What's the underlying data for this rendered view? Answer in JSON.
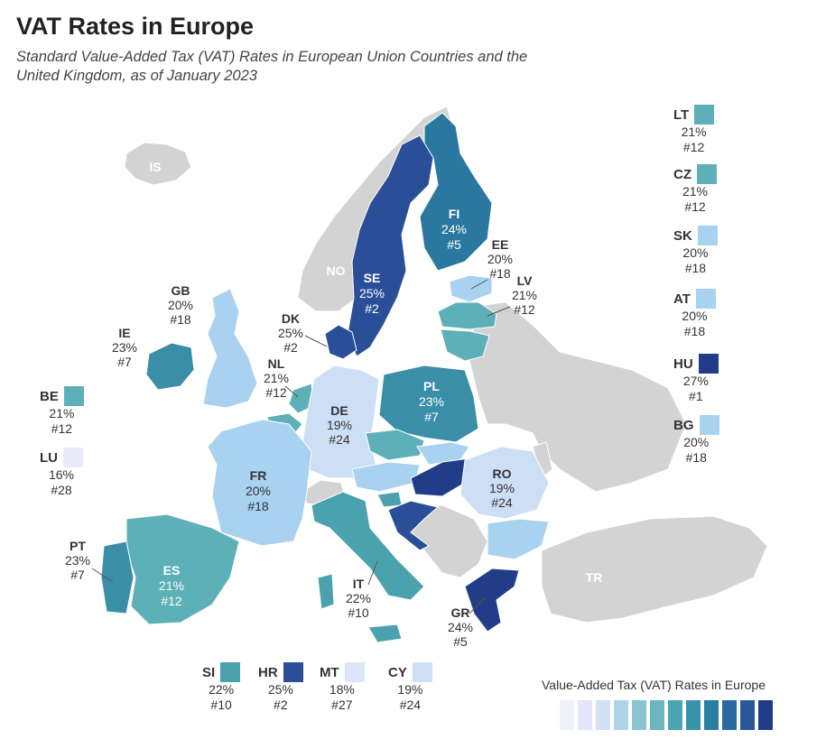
{
  "title": "VAT Rates in Europe",
  "subtitle": "Standard Value-Added Tax (VAT) Rates in European Union Countries and the United Kingdom, as of January 2023",
  "colors": {
    "non_eu": "#d3d3d3",
    "r16": "#e8ecfa",
    "r18": "#dde6f8",
    "r19": "#cddff5",
    "r20": "#a9d1f0",
    "r21": "#5eb0b8",
    "r22": "#4aa2ae",
    "r23": "#3a8ea8",
    "r24": "#2a78a0",
    "r25": "#2a4f98",
    "r27": "#223d88"
  },
  "map_labels": {
    "is": "IS",
    "no": "NO",
    "tr": "TR",
    "fi": {
      "code": "FI",
      "rate": "24%",
      "rank": "#5"
    },
    "se": {
      "code": "SE",
      "rate": "25%",
      "rank": "#2"
    },
    "ee": {
      "code": "EE",
      "rate": "20%",
      "rank": "#18"
    },
    "lv": {
      "code": "LV",
      "rate": "21%",
      "rank": "#12"
    },
    "gb": {
      "code": "GB",
      "rate": "20%",
      "rank": "#18"
    },
    "ie": {
      "code": "IE",
      "rate": "23%",
      "rank": "#7"
    },
    "dk": {
      "code": "DK",
      "rate": "25%",
      "rank": "#2"
    },
    "nl": {
      "code": "NL",
      "rate": "21%",
      "rank": "#12"
    },
    "de": {
      "code": "DE",
      "rate": "19%",
      "rank": "#24"
    },
    "pl": {
      "code": "PL",
      "rate": "23%",
      "rank": "#7"
    },
    "fr": {
      "code": "FR",
      "rate": "20%",
      "rank": "#18"
    },
    "ro": {
      "code": "RO",
      "rate": "19%",
      "rank": "#24"
    },
    "pt": {
      "code": "PT",
      "rate": "23%",
      "rank": "#7"
    },
    "es": {
      "code": "ES",
      "rate": "21%",
      "rank": "#12"
    },
    "it": {
      "code": "IT",
      "rate": "22%",
      "rank": "#10"
    },
    "gr": {
      "code": "GR",
      "rate": "24%",
      "rank": "#5"
    }
  },
  "side_right": [
    {
      "code": "LT",
      "rate": "21%",
      "rank": "#12",
      "color": "#5eb0b8"
    },
    {
      "code": "CZ",
      "rate": "21%",
      "rank": "#12",
      "color": "#5eb0b8"
    },
    {
      "code": "SK",
      "rate": "20%",
      "rank": "#18",
      "color": "#a9d1f0"
    },
    {
      "code": "AT",
      "rate": "20%",
      "rank": "#18",
      "color": "#a9d1f0"
    },
    {
      "code": "HU",
      "rate": "27%",
      "rank": "#1",
      "color": "#223d88"
    },
    {
      "code": "BG",
      "rate": "20%",
      "rank": "#18",
      "color": "#a9d1f0"
    }
  ],
  "side_left": [
    {
      "code": "BE",
      "rate": "21%",
      "rank": "#12",
      "color": "#5eb0b8"
    },
    {
      "code": "LU",
      "rate": "16%",
      "rank": "#28",
      "color": "#e8ecfa"
    }
  ],
  "side_bottom": [
    {
      "code": "SI",
      "rate": "22%",
      "rank": "#10",
      "color": "#4aa2ae"
    },
    {
      "code": "HR",
      "rate": "25%",
      "rank": "#2",
      "color": "#2a4f98"
    },
    {
      "code": "MT",
      "rate": "18%",
      "rank": "#27",
      "color": "#dde6f8"
    },
    {
      "code": "CY",
      "rate": "19%",
      "rank": "#24",
      "color": "#cddff5"
    }
  ],
  "legend": {
    "title": "Value-Added Tax (VAT) Rates in Europe",
    "swatches": [
      "#eef1fb",
      "#e2e8f8",
      "#cfe1f3",
      "#aed3e6",
      "#8ac4d2",
      "#6bb6c0",
      "#4aa6b0",
      "#3593aa",
      "#2a7ea2",
      "#2a6aa0",
      "#2a569a",
      "#223d88"
    ]
  }
}
